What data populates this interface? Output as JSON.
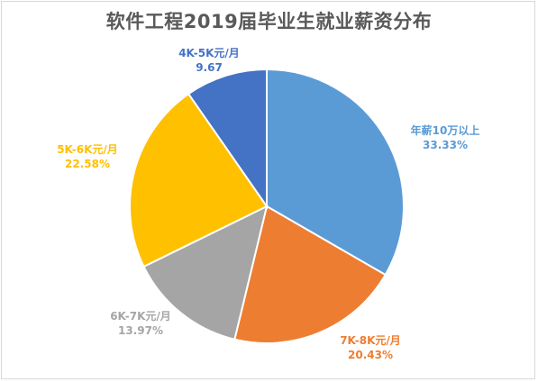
{
  "chart_data": {
    "type": "pie",
    "title": "软件工程2019届毕业生就业薪资分布",
    "slices": [
      {
        "label": "年薪10万以上",
        "value": "33.33%",
        "pct": 33.33,
        "color": "#5b9bd5"
      },
      {
        "label": "7K-8K元/月",
        "value": "20.43%",
        "pct": 20.43,
        "color": "#ed7d31"
      },
      {
        "label": "6K-7K元/月",
        "value": "13.97%",
        "pct": 13.97,
        "color": "#a5a5a5"
      },
      {
        "label": "5K-6K元/月",
        "value": "22.58%",
        "pct": 22.58,
        "color": "#ffc000"
      },
      {
        "label": "4K-5K元/月",
        "value": "9.67",
        "pct": 9.67,
        "color": "#4472c4"
      }
    ]
  }
}
